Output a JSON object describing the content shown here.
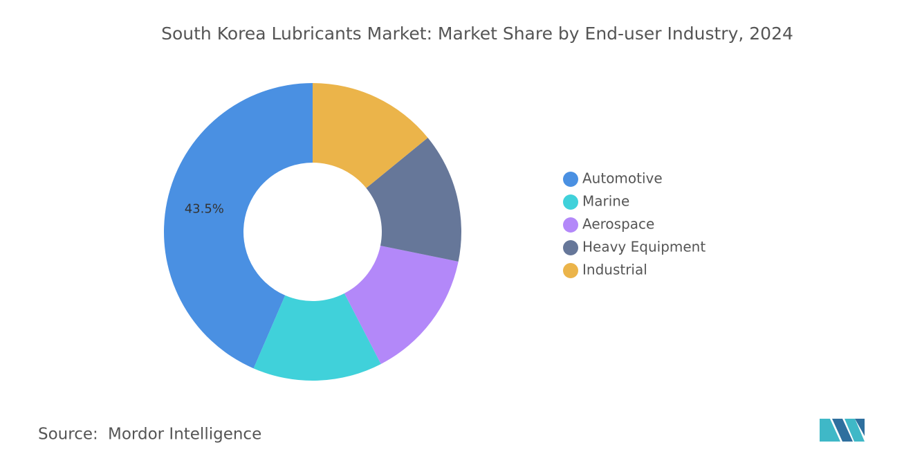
{
  "chart_data": {
    "type": "donut",
    "title": "South Korea Lubricants Market: Market Share by End-user Industry, 2024",
    "categories": [
      "Automotive",
      "Marine",
      "Aerospace",
      "Heavy Equipment",
      "Industrial"
    ],
    "values": [
      43.5,
      14.1,
      14.2,
      14.1,
      14.1
    ],
    "value_labels": [
      "43.5%",
      null,
      null,
      null,
      null
    ],
    "colors": [
      "#4a90e2",
      "#40d1da",
      "#b388f9",
      "#667799",
      "#ebb44a"
    ],
    "legend": "right"
  },
  "source": {
    "label": "Source:",
    "text": "Mordor Intelligence"
  }
}
